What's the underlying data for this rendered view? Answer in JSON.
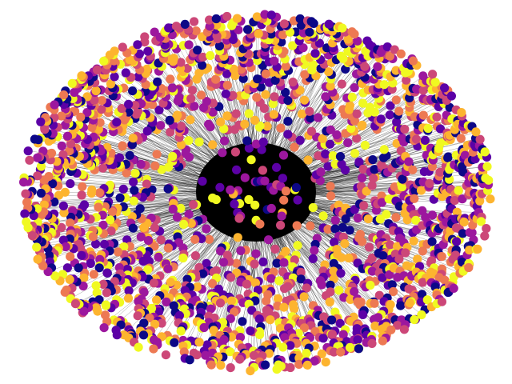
{
  "diagram": {
    "type": "network-graph",
    "layout": "radial-ellipse",
    "background_color": "#ffffff",
    "edge_color": "#000000",
    "node_palette": [
      "#0d0887",
      "#5c01a6",
      "#9c179e",
      "#cc4778",
      "#ed7953",
      "#fdb42f",
      "#f0f921"
    ],
    "node_count_estimate": 2400,
    "labels_shown": false
  }
}
